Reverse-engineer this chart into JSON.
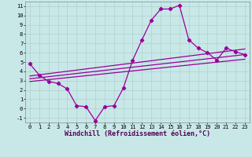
{
  "bg_color": "#c8e8e8",
  "line_color": "#990099",
  "marker": "D",
  "markersize": 2.2,
  "linewidth": 0.9,
  "xlim": [
    -0.5,
    23.5
  ],
  "ylim": [
    -1.5,
    11.5
  ],
  "xticks": [
    0,
    1,
    2,
    3,
    4,
    5,
    6,
    7,
    8,
    9,
    10,
    11,
    12,
    13,
    14,
    15,
    16,
    17,
    18,
    19,
    20,
    21,
    22,
    23
  ],
  "yticks": [
    -1,
    0,
    1,
    2,
    3,
    4,
    5,
    6,
    7,
    8,
    9,
    10,
    11
  ],
  "line1_x": [
    0,
    1,
    2,
    3,
    4,
    5,
    6,
    7,
    8,
    9,
    10,
    11,
    12,
    13,
    14,
    15,
    16,
    17,
    18,
    19,
    20,
    21,
    22,
    23
  ],
  "line1_y": [
    4.8,
    3.6,
    2.9,
    2.7,
    2.1,
    0.3,
    0.2,
    -1.3,
    0.2,
    0.3,
    2.2,
    5.2,
    7.4,
    9.5,
    10.7,
    10.7,
    11.1,
    7.4,
    6.5,
    6.0,
    5.2,
    6.5,
    6.1,
    5.8
  ],
  "line2_x": [
    0,
    23
  ],
  "line2_y": [
    3.5,
    6.4
  ],
  "line3_x": [
    0,
    23
  ],
  "line3_y": [
    3.2,
    5.8
  ],
  "line4_x": [
    0,
    23
  ],
  "line4_y": [
    2.9,
    5.3
  ],
  "xlabel": "Windchill (Refroidissement éolien,°C)",
  "tick_fontsize": 5.0,
  "label_fontsize": 6.0,
  "grid_color": "#b0d0d0"
}
